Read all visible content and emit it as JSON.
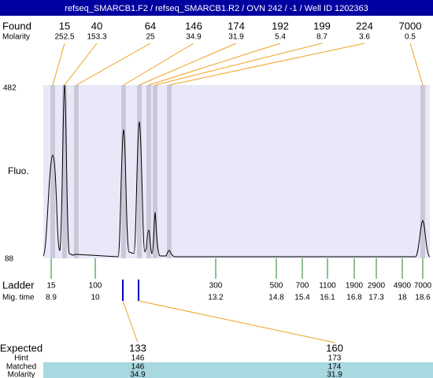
{
  "header": {
    "title": "refseq_SMARCB1.F2 / refseq_SMARCB1.R2 / OVN 242 / -1 / Well ID 1202363"
  },
  "found": {
    "label": "Found",
    "molarity_label": "Molarity",
    "peaks": [
      {
        "size": "15",
        "molarity": "252.5"
      },
      {
        "size": "40",
        "molarity": "153.3"
      },
      {
        "size": "64",
        "molarity": "25"
      },
      {
        "size": "146",
        "molarity": "34.9"
      },
      {
        "size": "174",
        "molarity": "31.9"
      },
      {
        "size": "192",
        "molarity": "5.4"
      },
      {
        "size": "199",
        "molarity": "8.7"
      },
      {
        "size": "224",
        "molarity": "3.6"
      },
      {
        "size": "7000",
        "molarity": "0.5"
      }
    ]
  },
  "plot": {
    "y_label": "Fluo.",
    "y_max": "482",
    "y_min": "88"
  },
  "ladder": {
    "label": "Ladder",
    "time_label": "Mig. time",
    "bands": [
      {
        "size": "15",
        "time": "8.9"
      },
      {
        "size": "100",
        "time": "10"
      },
      {
        "size": "300",
        "time": "13.2"
      },
      {
        "size": "500",
        "time": "14.8"
      },
      {
        "size": "700",
        "time": "15.4"
      },
      {
        "size": "1100",
        "time": "16.1"
      },
      {
        "size": "1900",
        "time": "16.8"
      },
      {
        "size": "2900",
        "time": "17.3"
      },
      {
        "size": "4900",
        "time": "18"
      },
      {
        "size": "7000",
        "time": "18.6"
      }
    ]
  },
  "expected": {
    "labels": [
      "Expected",
      "Hint",
      "Matched",
      "Molarity"
    ],
    "columns": [
      {
        "expected": "133",
        "hint": "146",
        "matched": "146",
        "molarity": "34.9"
      },
      {
        "expected": "160",
        "hint": "173",
        "matched": "174",
        "molarity": "31.9"
      }
    ]
  }
}
